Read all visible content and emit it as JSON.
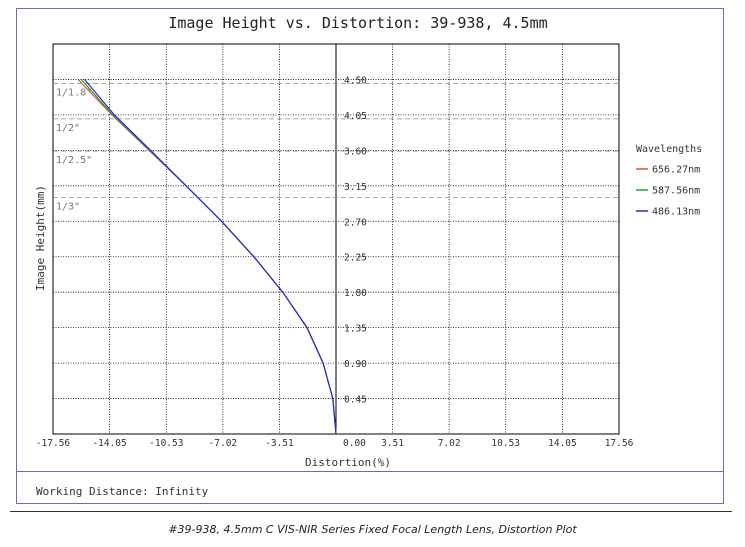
{
  "chart_data": {
    "type": "line",
    "title": "Image Height vs. Distortion: 39-938, 4.5mm",
    "xlabel": "Distortion(%)",
    "ylabel": "Image Height(mm)",
    "xlim": [
      -17.56,
      17.56
    ],
    "ylim": [
      0,
      4.95
    ],
    "x_ticks": [
      "-17.56",
      "-14.05",
      "-10.53",
      "-7.02",
      "-3.51",
      "0.00",
      "3.51",
      "7.02",
      "10.53",
      "14.05",
      "17.56"
    ],
    "y_ticks": [
      "0.45",
      "0.90",
      "1.35",
      "1.80",
      "2.25",
      "2.70",
      "3.15",
      "3.60",
      "4.05",
      "4.50"
    ],
    "grid": true,
    "legend_title": "Wavelengths",
    "legend_position": "right",
    "sensor_formats": [
      {
        "label": "1/1.8\"",
        "height": 4.45
      },
      {
        "label": "1/2\"",
        "height": 4.0
      },
      {
        "label": "1/2.5\"",
        "height": 3.59
      },
      {
        "label": "1/3\"",
        "height": 3.0
      }
    ],
    "series": [
      {
        "name": "656.27nm",
        "color": "#e0502a",
        "x": [
          0,
          -0.2,
          -0.8,
          -1.8,
          -3.3,
          -5.1,
          -7.1,
          -9.3,
          -11.6,
          -13.9,
          -16.0
        ],
        "y": [
          0,
          0.45,
          0.9,
          1.35,
          1.8,
          2.25,
          2.7,
          3.15,
          3.6,
          4.05,
          4.5
        ]
      },
      {
        "name": "587.56nm",
        "color": "#2e9e3a",
        "x": [
          0,
          -0.2,
          -0.8,
          -1.8,
          -3.3,
          -5.1,
          -7.1,
          -9.3,
          -11.55,
          -13.85,
          -15.8
        ],
        "y": [
          0,
          0.45,
          0.9,
          1.35,
          1.8,
          2.25,
          2.7,
          3.15,
          3.6,
          4.05,
          4.5
        ]
      },
      {
        "name": "486.13nm",
        "color": "#2a2ad0",
        "x": [
          0,
          -0.2,
          -0.8,
          -1.8,
          -3.3,
          -5.1,
          -7.1,
          -9.3,
          -11.5,
          -13.75,
          -15.6
        ],
        "y": [
          0,
          0.45,
          0.9,
          1.35,
          1.8,
          2.25,
          2.7,
          3.15,
          3.6,
          4.05,
          4.5
        ]
      }
    ]
  },
  "footer": {
    "working_distance": "Working Distance: Infinity",
    "caption": "#39-938, 4.5mm C VIS-NIR Series Fixed Focal Length Lens, Distortion Plot"
  }
}
